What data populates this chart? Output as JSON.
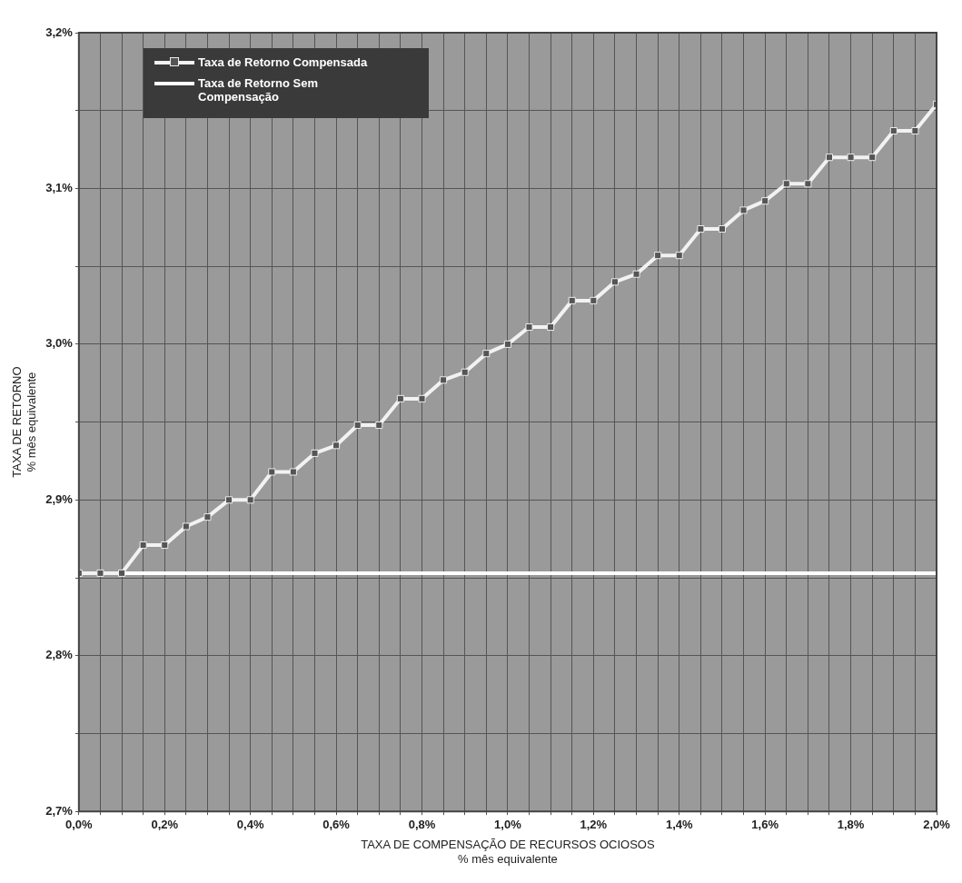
{
  "chart_data": {
    "type": "line",
    "xlabel": "TAXA DE COMPENSAÇÃO DE RECURSOS OCIOSOS\n% mês equivalente",
    "ylabel": "TAXA DE RETORNO\n% mês equivalente",
    "x": [
      0,
      0.05,
      0.1,
      0.15,
      0.2,
      0.25,
      0.3,
      0.35,
      0.4,
      0.45,
      0.5,
      0.55,
      0.6,
      0.65,
      0.7,
      0.75,
      0.8,
      0.85,
      0.9,
      0.95,
      1.0,
      1.05,
      1.1,
      1.15,
      1.2,
      1.25,
      1.3,
      1.35,
      1.4,
      1.45,
      1.5,
      1.55,
      1.6,
      1.65,
      1.7,
      1.75,
      1.8,
      1.85,
      1.9,
      1.95,
      2.0
    ],
    "series": [
      {
        "name": "Taxa de Retorno Compensada",
        "color": "#f2f2f2",
        "marker": "square",
        "values": [
          2.853,
          2.853,
          2.853,
          2.871,
          2.871,
          2.883,
          2.889,
          2.9,
          2.9,
          2.918,
          2.918,
          2.93,
          2.935,
          2.948,
          2.948,
          2.965,
          2.965,
          2.977,
          2.982,
          2.994,
          3.0,
          3.011,
          3.011,
          3.028,
          3.028,
          3.04,
          3.045,
          3.057,
          3.057,
          3.074,
          3.074,
          3.086,
          3.092,
          3.103,
          3.103,
          3.12,
          3.12,
          3.12,
          3.137,
          3.137,
          3.154
        ]
      },
      {
        "name": "Taxa de Retorno Sem Compensação",
        "color": "#ffffff",
        "marker": "none",
        "x": [
          0,
          2.0
        ],
        "values": [
          2.853,
          2.853
        ]
      }
    ],
    "xlim": [
      0,
      2.0
    ],
    "ylim": [
      2.7,
      3.2
    ],
    "xticks": [
      {
        "value": 0,
        "label": "0,0%"
      },
      {
        "value": 0.05,
        "label": null
      },
      {
        "value": 0.1,
        "label": null
      },
      {
        "value": 0.15,
        "label": null
      },
      {
        "value": 0.2,
        "label": "0,2%"
      },
      {
        "value": 0.25,
        "label": null
      },
      {
        "value": 0.3,
        "label": null
      },
      {
        "value": 0.35,
        "label": null
      },
      {
        "value": 0.4,
        "label": "0,4%"
      },
      {
        "value": 0.45,
        "label": null
      },
      {
        "value": 0.5,
        "label": null
      },
      {
        "value": 0.55,
        "label": null
      },
      {
        "value": 0.6,
        "label": "0,6%"
      },
      {
        "value": 0.65,
        "label": null
      },
      {
        "value": 0.7,
        "label": null
      },
      {
        "value": 0.75,
        "label": null
      },
      {
        "value": 0.8,
        "label": "0,8%"
      },
      {
        "value": 0.85,
        "label": null
      },
      {
        "value": 0.9,
        "label": null
      },
      {
        "value": 0.95,
        "label": null
      },
      {
        "value": 1.0,
        "label": "1,0%"
      },
      {
        "value": 1.05,
        "label": null
      },
      {
        "value": 1.1,
        "label": null
      },
      {
        "value": 1.15,
        "label": null
      },
      {
        "value": 1.2,
        "label": "1,2%"
      },
      {
        "value": 1.25,
        "label": null
      },
      {
        "value": 1.3,
        "label": null
      },
      {
        "value": 1.35,
        "label": null
      },
      {
        "value": 1.4,
        "label": "1,4%"
      },
      {
        "value": 1.45,
        "label": null
      },
      {
        "value": 1.5,
        "label": null
      },
      {
        "value": 1.55,
        "label": null
      },
      {
        "value": 1.6,
        "label": "1,6%"
      },
      {
        "value": 1.65,
        "label": null
      },
      {
        "value": 1.7,
        "label": null
      },
      {
        "value": 1.75,
        "label": null
      },
      {
        "value": 1.8,
        "label": "1,8%"
      },
      {
        "value": 1.85,
        "label": null
      },
      {
        "value": 1.9,
        "label": null
      },
      {
        "value": 1.95,
        "label": null
      },
      {
        "value": 2.0,
        "label": "2,0%"
      }
    ],
    "yticks": [
      {
        "value": 2.7,
        "label": "2,7%"
      },
      {
        "value": 2.75,
        "label": null
      },
      {
        "value": 2.8,
        "label": "2,8%"
      },
      {
        "value": 2.85,
        "label": null
      },
      {
        "value": 2.9,
        "label": "2,9%"
      },
      {
        "value": 2.95,
        "label": null
      },
      {
        "value": 3.0,
        "label": "3,0%"
      },
      {
        "value": 3.05,
        "label": null
      },
      {
        "value": 3.1,
        "label": "3,1%"
      },
      {
        "value": 3.15,
        "label": null
      },
      {
        "value": 3.2,
        "label": "3,2%"
      }
    ],
    "grid": true,
    "legend": "top left",
    "line_style": "solid"
  }
}
